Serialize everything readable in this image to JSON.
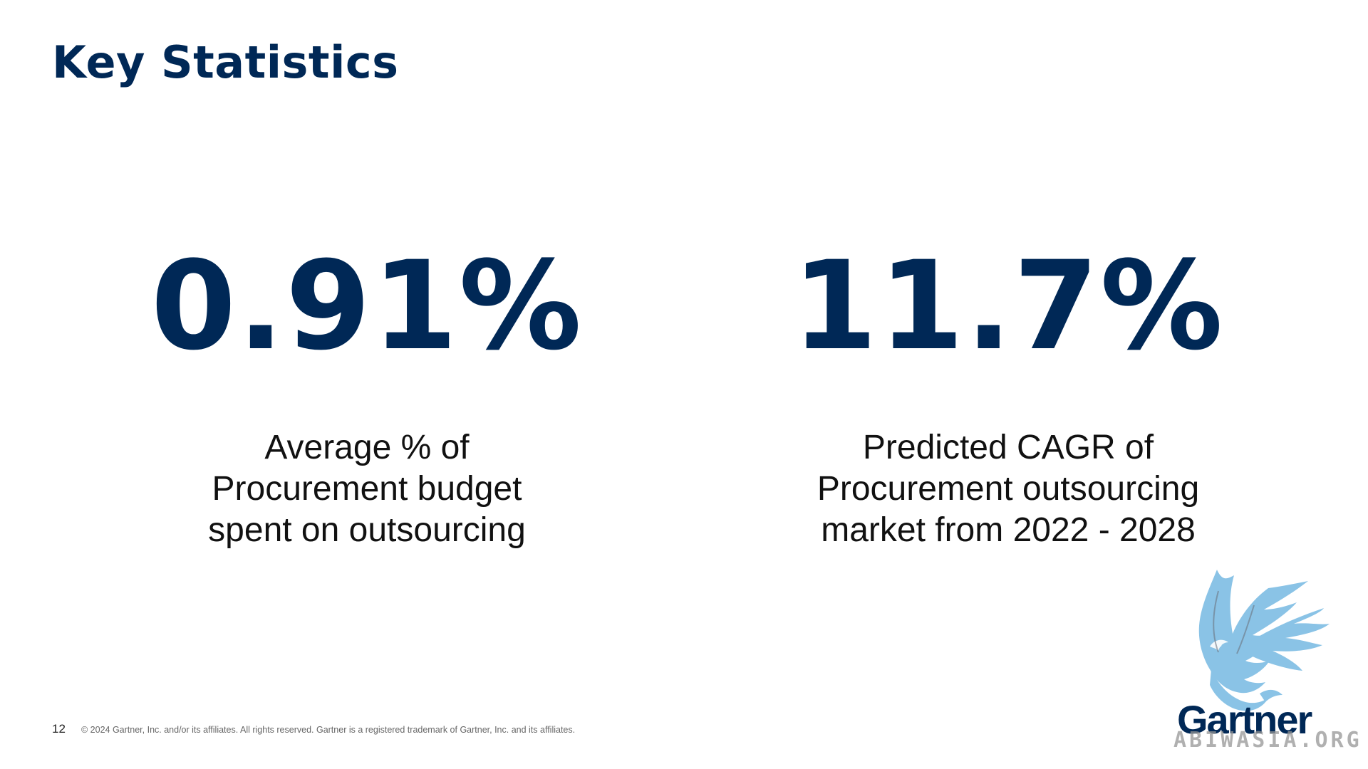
{
  "slide": {
    "title": "Key Statistics",
    "page_number": "12",
    "copyright": "© 2024 Gartner, Inc. and/or its affiliates. All rights reserved. Gartner is a registered trademark of Gartner, Inc. and its affiliates."
  },
  "stats": [
    {
      "value": "0.91%",
      "description_lines": [
        "Average % of",
        "Procurement budget",
        "spent on outsourcing"
      ]
    },
    {
      "value": "11.7%",
      "description_lines": [
        "Predicted CAGR of",
        "Procurement outsourcing",
        "market from 2022 - 2028"
      ]
    }
  ],
  "logo": {
    "brand": "Gartner",
    "watermark": "ABIWASIA.ORG",
    "icon": "bird-icon"
  },
  "colors": {
    "primary": "#002856",
    "logo_bird": "#8ac3e6",
    "text": "#111111"
  }
}
